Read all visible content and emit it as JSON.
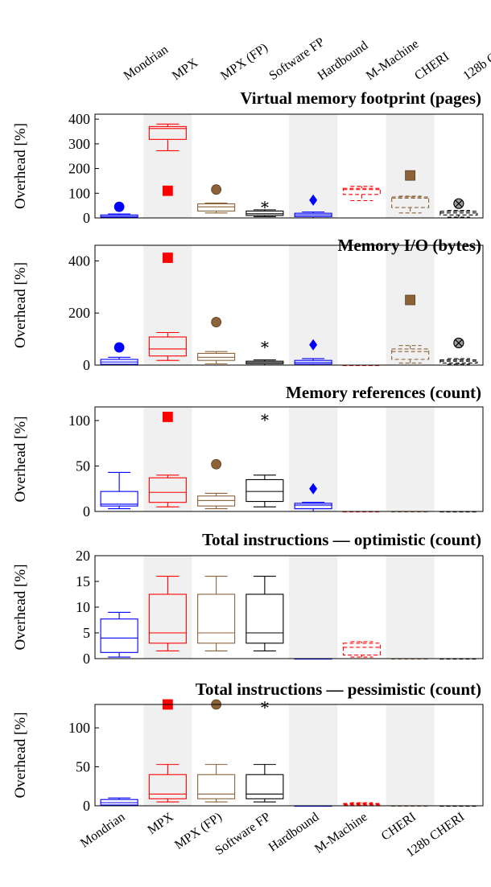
{
  "chart_data": {
    "type": "box",
    "categories": [
      "Mondrian",
      "MPX",
      "MPX (FP)",
      "Software FP",
      "Hardbound",
      "M-Machine",
      "CHERI",
      "128b CHERI"
    ],
    "series_colors": {
      "Mondrian": "#0000ff",
      "MPX": "#ff0000",
      "MPX (FP)": "#8c6239",
      "Software FP": "#000000",
      "Hardbound": "#0000ff",
      "M-Machine": "#ff0000",
      "CHERI": "#8c6239",
      "128b CHERI": "#000000"
    },
    "dashed_categories": [
      "M-Machine",
      "CHERI",
      "128b CHERI"
    ],
    "shaded_categories": [
      "MPX",
      "Hardbound",
      "CHERI"
    ],
    "outlier_markers": {
      "Mondrian": "circle",
      "MPX": "square",
      "MPX (FP)": "circle",
      "Software FP": "star",
      "Hardbound": "diamond",
      "M-Machine": "none",
      "CHERI": "square",
      "128b CHERI": "otimes"
    },
    "panels": [
      {
        "title": "Virtual memory footprint (pages)",
        "ylabel": "Overhead [%]",
        "ylim": [
          0,
          420
        ],
        "yticks": [
          "0",
          "100",
          "200",
          "300",
          "400"
        ],
        "ytick_values": [
          0,
          100,
          200,
          300,
          400
        ],
        "boxes": [
          {
            "min": 0,
            "q1": 2,
            "median": 6,
            "q3": 12,
            "max": 16,
            "outlier": 45
          },
          {
            "min": 272,
            "q1": 318,
            "median": 362,
            "q3": 370,
            "max": 380,
            "outlier": 110
          },
          {
            "min": 20,
            "q1": 28,
            "median": 45,
            "q3": 57,
            "max": 60,
            "outlier": 115
          },
          {
            "min": 5,
            "q1": 10,
            "median": 17,
            "q3": 28,
            "max": 33,
            "outlier": 55
          },
          {
            "min": 0,
            "q1": 5,
            "median": 12,
            "q3": 19,
            "max": 24,
            "outlier": 72
          },
          {
            "min": 70,
            "q1": 95,
            "median": 115,
            "q3": 120,
            "max": 128,
            "outlier": null
          },
          {
            "min": 20,
            "q1": 42,
            "median": 80,
            "q3": 85,
            "max": 88,
            "outlier": 172
          },
          {
            "min": 3,
            "q1": 12,
            "median": 20,
            "q3": 27,
            "max": 30,
            "outlier": 58
          }
        ]
      },
      {
        "title": "Memory I/O (bytes)",
        "ylabel": "Overhead [%]",
        "ylim": [
          0,
          460
        ],
        "yticks": [
          "0",
          "200",
          "400"
        ],
        "ytick_values": [
          0,
          200,
          400
        ],
        "boxes": [
          {
            "min": 0,
            "q1": 3,
            "median": 12,
            "q3": 22,
            "max": 30,
            "outlier": 68
          },
          {
            "min": 18,
            "q1": 35,
            "median": 62,
            "q3": 108,
            "max": 125,
            "outlier": 412
          },
          {
            "min": 5,
            "q1": 18,
            "median": 30,
            "q3": 45,
            "max": 52,
            "outlier": 165
          },
          {
            "min": 0,
            "q1": 5,
            "median": 10,
            "q3": 15,
            "max": 20,
            "outlier": 80
          },
          {
            "min": 0,
            "q1": 4,
            "median": 10,
            "q3": 18,
            "max": 25,
            "outlier": 78
          },
          {
            "min": 0,
            "q1": 0,
            "median": 0,
            "q3": 0,
            "max": 0,
            "outlier": null
          },
          {
            "min": 8,
            "q1": 22,
            "median": 52,
            "q3": 62,
            "max": 75,
            "outlier": 250
          },
          {
            "min": 3,
            "q1": 8,
            "median": 15,
            "q3": 20,
            "max": 25,
            "outlier": 85
          }
        ]
      },
      {
        "title": "Memory references (count)",
        "ylabel": "Overhead [%]",
        "ylim": [
          0,
          115
        ],
        "yticks": [
          "0",
          "50",
          "100"
        ],
        "ytick_values": [
          0,
          50,
          100
        ],
        "boxes": [
          {
            "min": 3,
            "q1": 6,
            "median": 8,
            "q3": 22,
            "max": 43,
            "outlier": null
          },
          {
            "min": 5,
            "q1": 10,
            "median": 21,
            "q3": 37,
            "max": 40,
            "outlier": 104
          },
          {
            "min": 3,
            "q1": 6,
            "median": 12,
            "q3": 17,
            "max": 20,
            "outlier": 52
          },
          {
            "min": 5,
            "q1": 11,
            "median": 22,
            "q3": 35,
            "max": 40,
            "outlier": 104
          },
          {
            "min": 0,
            "q1": 3,
            "median": 7,
            "q3": 9,
            "max": 10,
            "outlier": 25
          },
          {
            "min": 0,
            "q1": 0,
            "median": 0,
            "q3": 0,
            "max": 0,
            "outlier": null
          },
          {
            "min": 0,
            "q1": 0,
            "median": 0,
            "q3": 0,
            "max": 0,
            "outlier": null
          },
          {
            "min": 0,
            "q1": 0,
            "median": 0,
            "q3": 0,
            "max": 0,
            "outlier": null
          }
        ]
      },
      {
        "title": "Total instructions — optimistic (count)",
        "ylabel": "Overhead [%]",
        "ylim": [
          0,
          20
        ],
        "yticks": [
          "0",
          "5",
          "10",
          "15",
          "20"
        ],
        "ytick_values": [
          0,
          5,
          10,
          15,
          20
        ],
        "boxes": [
          {
            "min": 0.3,
            "q1": 1.2,
            "median": 4,
            "q3": 7.7,
            "max": 9,
            "outlier": null
          },
          {
            "min": 1.5,
            "q1": 3,
            "median": 5,
            "q3": 12.5,
            "max": 16,
            "outlier": null
          },
          {
            "min": 1.5,
            "q1": 3,
            "median": 5,
            "q3": 12.5,
            "max": 16,
            "outlier": null
          },
          {
            "min": 1.5,
            "q1": 3,
            "median": 5,
            "q3": 12.5,
            "max": 16,
            "outlier": null
          },
          {
            "min": 0,
            "q1": 0,
            "median": 0,
            "q3": 0,
            "max": 0,
            "outlier": null
          },
          {
            "min": 0.3,
            "q1": 0.7,
            "median": 2.2,
            "q3": 3,
            "max": 3.3,
            "outlier": null
          },
          {
            "min": 0,
            "q1": 0,
            "median": 0,
            "q3": 0,
            "max": 0,
            "outlier": null
          },
          {
            "min": 0,
            "q1": 0,
            "median": 0,
            "q3": 0,
            "max": 0,
            "outlier": null
          }
        ]
      },
      {
        "title": "Total instructions — pessimistic (count)",
        "ylabel": "Overhead [%]",
        "ylim": [
          0,
          130
        ],
        "yticks": [
          "0",
          "50",
          "100"
        ],
        "ytick_values": [
          0,
          50,
          100
        ],
        "boxes": [
          {
            "min": 0,
            "q1": 1,
            "median": 4,
            "q3": 8,
            "max": 10,
            "outlier": null
          },
          {
            "min": 5,
            "q1": 9,
            "median": 15,
            "q3": 40,
            "max": 53,
            "outlier": 130
          },
          {
            "min": 5,
            "q1": 9,
            "median": 15,
            "q3": 40,
            "max": 53,
            "outlier": 130
          },
          {
            "min": 5,
            "q1": 9,
            "median": 15,
            "q3": 40,
            "max": 53,
            "outlier": 130
          },
          {
            "min": 0,
            "q1": 0,
            "median": 0,
            "q3": 0,
            "max": 0,
            "outlier": null
          },
          {
            "min": 0,
            "q1": 1,
            "median": 2,
            "q3": 3,
            "max": 4,
            "outlier": null
          },
          {
            "min": 0,
            "q1": 0,
            "median": 0,
            "q3": 0,
            "max": 0,
            "outlier": null
          },
          {
            "min": 0,
            "q1": 0,
            "median": 0,
            "q3": 0,
            "max": 0,
            "outlier": null
          }
        ]
      }
    ]
  }
}
